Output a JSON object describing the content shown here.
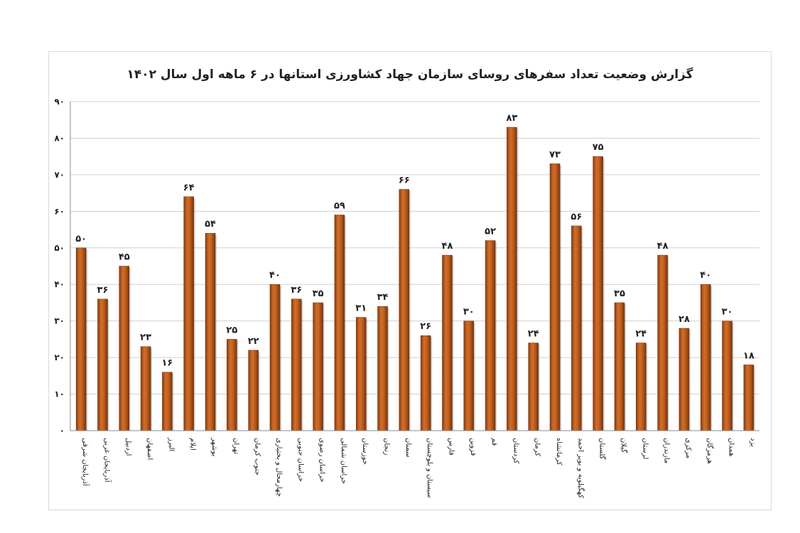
{
  "chart_data": {
    "type": "bar",
    "title": "گزارش وضعیت تعداد سفرهای  روسای سازمان جهاد کشاورزی استانها در ۶ ماهه اول سال ۱۴۰۲",
    "xlabel": "",
    "ylabel": "",
    "ylim": [
      0,
      90
    ],
    "yticks": [
      0,
      10,
      20,
      30,
      40,
      50,
      60,
      70,
      80,
      90
    ],
    "ytick_labels": [
      "۰",
      "۱۰",
      "۲۰",
      "۳۰",
      "۴۰",
      "۵۰",
      "۶۰",
      "۷۰",
      "۸۰",
      "۹۰"
    ],
    "grid": true,
    "legend": "none",
    "bar_color": "#b5561a",
    "categories": [
      "آذربایجان شرقی",
      "آذربایجان غربی",
      "اردبیل",
      "اصفهان",
      "البرز",
      "ایلام",
      "بوشهر",
      "تهران",
      "جنوب کرمان",
      "چهارمحال و بختیاری",
      "خراسان جنوبی",
      "خراسان رضوی",
      "خراسان شمالی",
      "خوزستان",
      "زنجان",
      "سمنان",
      "سیستان و بلوچستان",
      "فارس",
      "قزوین",
      "قم",
      "کردستان",
      "کرمان",
      "کرمانشاه",
      "کهگیلویه و بویر احمد",
      "گلستان",
      "گیلان",
      "لرستان",
      "مازندران",
      "مرکزی",
      "هرمزگان",
      "همدان",
      "یزد"
    ],
    "values": [
      50,
      36,
      45,
      23,
      16,
      64,
      54,
      25,
      22,
      40,
      36,
      35,
      59,
      31,
      34,
      66,
      26,
      48,
      30,
      52,
      83,
      24,
      73,
      56,
      75,
      35,
      24,
      48,
      28,
      40,
      30,
      18
    ],
    "value_labels": [
      "۵۰",
      "۳۶",
      "۴۵",
      "۲۳",
      "۱۶",
      "۶۴",
      "۵۴",
      "۲۵",
      "۲۲",
      "۴۰",
      "۳۶",
      "۳۵",
      "۵۹",
      "۳۱",
      "۳۴",
      "۶۶",
      "۲۶",
      "۴۸",
      "۳۰",
      "۵۲",
      "۸۳",
      "۲۴",
      "۷۳",
      "۵۶",
      "۷۵",
      "۳۵",
      "۲۴",
      "۴۸",
      "۲۸",
      "۴۰",
      "۳۰",
      "۱۸"
    ]
  }
}
